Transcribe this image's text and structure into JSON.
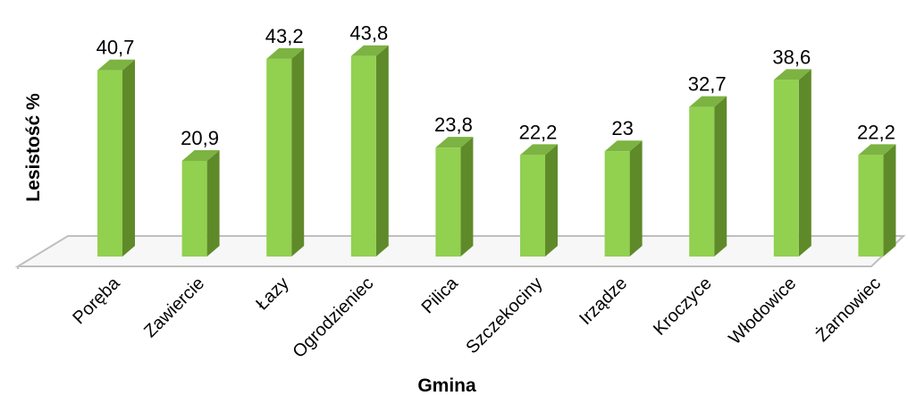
{
  "chart_data": {
    "type": "bar",
    "style": "3d-column",
    "categories": [
      "Poręba",
      "Zawiercie",
      "Łazy",
      "Ogrodzieniec",
      "Pilica",
      "Szczekociny",
      "Irządze",
      "Kroczyce",
      "Włodowice",
      "Żarnowiec"
    ],
    "series": [
      {
        "values": [
          40.7,
          20.9,
          43.2,
          43.8,
          23.8,
          22.2,
          23,
          32.7,
          38.6,
          22.2
        ],
        "labels": [
          "40,7",
          "20,9",
          "43,2",
          "43,8",
          "23,8",
          "22,2",
          "23",
          "32,7",
          "38,6",
          "22,2"
        ]
      }
    ],
    "title": "",
    "xlabel": "Gmina",
    "ylabel": "Lesistość %",
    "ylim": [
      0,
      50
    ],
    "grid": false,
    "legend": "none",
    "colors": {
      "bar_front": "#92d050",
      "bar_side": "#5f8a2a",
      "bar_top": "#7cb342",
      "floor": "#bfbfbf"
    }
  }
}
